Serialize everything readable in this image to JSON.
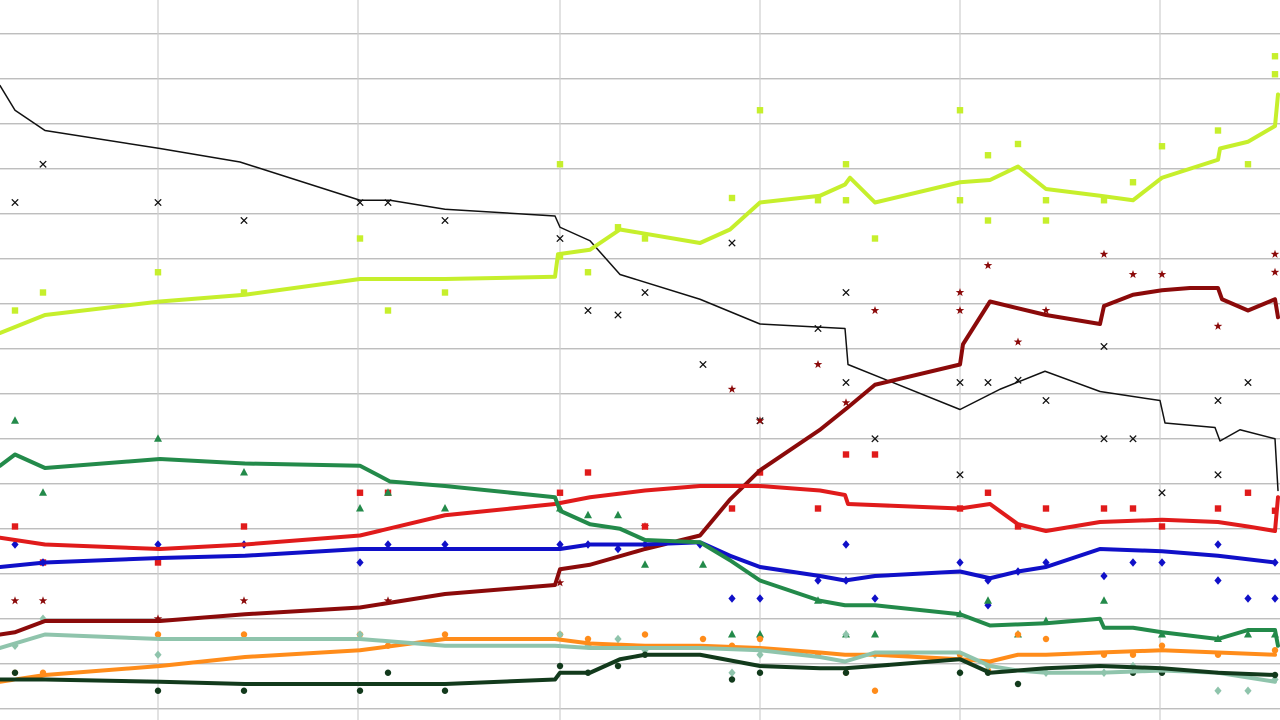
{
  "chart_data": {
    "type": "line",
    "xlim": [
      0,
      6.4
    ],
    "ylim": [
      -0.5,
      31.5
    ],
    "xticks": [
      0.79,
      1.79,
      2.8,
      3.8,
      4.8,
      5.8
    ],
    "yticks": [
      0,
      2,
      4,
      6,
      8,
      10,
      12,
      14,
      16,
      18,
      20,
      22,
      24,
      26,
      28,
      30
    ],
    "grid": true,
    "series": [
      {
        "color": "#111111",
        "width": 1.5,
        "marker": "cross",
        "x": [
          0,
          0.075,
          0.225,
          0.8,
          1.2,
          1.8,
          1.95,
          2.225,
          2.775,
          2.8,
          2.95,
          3.1,
          3.5,
          3.8,
          4.225,
          4.24,
          4.8,
          5,
          5.225,
          5.5,
          5.8,
          5.825,
          6.075,
          6.1,
          6.2,
          6.375,
          6.39
        ],
        "values": [
          27.7,
          26.6,
          25.7,
          24.9,
          24.3,
          22.6,
          22.6,
          22.2,
          21.9,
          21.4,
          20.8,
          19.3,
          18.2,
          17.1,
          16.9,
          15.3,
          13.3,
          14.2,
          15.0,
          14.1,
          13.7,
          12.7,
          12.5,
          11.9,
          12.4,
          12.0,
          9.7
        ],
        "points": {
          "x": [
            0.075,
            0.215,
            0.79,
            1.22,
            1.8,
            1.94,
            2.225,
            2.8,
            2.94,
            3.09,
            3.225,
            3.515,
            3.66,
            3.8,
            4.09,
            4.23,
            4.23,
            4.375,
            4.8,
            4.8,
            4.94,
            5.09,
            5.23,
            5.52,
            5.52,
            5.665,
            5.81,
            6.09,
            6.09,
            6.24
          ],
          "values": [
            22.5,
            24.2,
            22.5,
            21.7,
            22.5,
            22.5,
            21.7,
            20.9,
            17.7,
            17.5,
            18.5,
            15.3,
            20.7,
            12.8,
            16.9,
            18.5,
            14.5,
            12.0,
            14.5,
            10.4,
            14.5,
            14.6,
            13.7,
            16.1,
            12.0,
            12.0,
            9.6,
            13.7,
            10.4,
            14.5
          ]
        }
      },
      {
        "color": "#c6ef2c",
        "width": 4,
        "marker": "square",
        "x": [
          0,
          0.225,
          0.8,
          1.225,
          1.8,
          2.225,
          2.775,
          2.79,
          2.95,
          3.1,
          3.5,
          3.65,
          3.8,
          4.1,
          4.225,
          4.25,
          4.375,
          4.8,
          4.95,
          5.09,
          5.23,
          5.5,
          5.665,
          5.81,
          6.09,
          6.1,
          6.24,
          6.375,
          6.39
        ],
        "values": [
          16.7,
          17.5,
          18.1,
          18.4,
          19.1,
          19.1,
          19.2,
          20.2,
          20.4,
          21.3,
          20.7,
          21.3,
          22.5,
          22.8,
          23.3,
          23.6,
          22.5,
          23.4,
          23.5,
          24.1,
          23.1,
          22.8,
          22.6,
          23.6,
          24.4,
          24.9,
          25.2,
          25.9,
          27.3
        ],
        "points": {
          "x": [
            0.075,
            0.215,
            0.79,
            1.22,
            1.8,
            1.94,
            2.225,
            2.8,
            2.8,
            2.94,
            3.09,
            3.225,
            3.66,
            3.8,
            4.09,
            4.23,
            4.23,
            4.375,
            4.8,
            4.8,
            4.94,
            4.94,
            5.09,
            5.23,
            5.23,
            5.52,
            5.665,
            5.81,
            6.09,
            6.24,
            6.375,
            6.375
          ],
          "values": [
            17.7,
            18.5,
            19.4,
            18.5,
            20.9,
            17.7,
            18.5,
            24.2,
            20.1,
            19.4,
            21.4,
            20.9,
            22.7,
            26.6,
            22.6,
            24.2,
            22.6,
            20.9,
            26.6,
            22.6,
            24.6,
            21.7,
            25.1,
            22.6,
            21.7,
            22.6,
            23.4,
            25.0,
            25.7,
            24.2,
            29.0,
            28.2
          ]
        }
      },
      {
        "color": "#8b0a0a",
        "width": 4,
        "marker": "star",
        "x": [
          0,
          0.075,
          0.225,
          0.8,
          1.225,
          1.8,
          2.225,
          2.775,
          2.8,
          2.95,
          3.225,
          3.5,
          3.65,
          3.8,
          4.1,
          4.24,
          4.375,
          4.8,
          4.815,
          4.95,
          5.23,
          5.5,
          5.52,
          5.665,
          5.81,
          5.95,
          6.09,
          6.11,
          6.24,
          6.375,
          6.39
        ],
        "values": [
          3.3,
          3.4,
          3.9,
          3.9,
          4.2,
          4.5,
          5.1,
          5.5,
          6.2,
          6.4,
          7.1,
          7.7,
          9.3,
          10.6,
          12.4,
          13.4,
          14.4,
          15.3,
          16.2,
          18.1,
          17.5,
          17.1,
          17.9,
          18.4,
          18.6,
          18.7,
          18.7,
          18.2,
          17.7,
          18.2,
          17.4
        ],
        "points": {
          "x": [
            0.075,
            0.215,
            0.79,
            1.22,
            1.94,
            2.8,
            3.225,
            3.66,
            3.8,
            4.09,
            4.23,
            4.375,
            4.8,
            4.8,
            4.94,
            5.09,
            5.23,
            5.52,
            5.665,
            5.81,
            6.09,
            6.375,
            6.375
          ],
          "values": [
            4.8,
            4.8,
            4.0,
            4.8,
            4.8,
            5.6,
            8.1,
            14.2,
            12.8,
            15.3,
            13.6,
            17.7,
            18.5,
            17.7,
            19.7,
            16.3,
            17.7,
            20.2,
            19.3,
            19.3,
            17.0,
            20.2,
            19.4
          ]
        }
      },
      {
        "color": "#e01b1b",
        "width": 4,
        "marker": "square",
        "x": [
          0,
          0.225,
          0.8,
          1.225,
          1.8,
          2.225,
          2.775,
          2.95,
          3.225,
          3.5,
          3.8,
          4.1,
          4.225,
          4.24,
          4.8,
          4.95,
          5.09,
          5.23,
          5.5,
          5.81,
          6.09,
          6.24,
          6.375,
          6.39
        ],
        "values": [
          7.6,
          7.3,
          7.1,
          7.3,
          7.7,
          8.6,
          9.1,
          9.4,
          9.7,
          9.9,
          9.9,
          9.7,
          9.5,
          9.1,
          8.9,
          9.1,
          8.2,
          7.9,
          8.3,
          8.4,
          8.3,
          8.1,
          7.9,
          9.4
        ],
        "points": {
          "x": [
            0.075,
            0.215,
            0.79,
            1.22,
            1.8,
            1.94,
            2.8,
            2.94,
            3.225,
            3.66,
            3.8,
            4.09,
            4.23,
            4.375,
            4.8,
            4.94,
            5.09,
            5.23,
            5.52,
            5.665,
            5.81,
            6.09,
            6.24,
            6.375
          ],
          "values": [
            8.1,
            6.5,
            6.5,
            8.1,
            9.6,
            9.6,
            9.6,
            10.5,
            8.1,
            8.9,
            10.5,
            8.9,
            11.3,
            11.3,
            8.9,
            9.6,
            8.1,
            8.9,
            8.9,
            8.9,
            8.1,
            8.9,
            9.6,
            8.8
          ]
        }
      },
      {
        "color": "#1010c8",
        "width": 4,
        "marker": "diamond",
        "x": [
          0,
          0.225,
          0.8,
          1.225,
          1.8,
          2.225,
          2.8,
          2.95,
          3.225,
          3.5,
          3.65,
          3.8,
          4.1,
          4.225,
          4.375,
          4.8,
          4.95,
          5.09,
          5.23,
          5.5,
          5.81,
          6.09,
          6.375
        ],
        "values": [
          6.3,
          6.5,
          6.7,
          6.8,
          7.1,
          7.1,
          7.1,
          7.3,
          7.3,
          7.4,
          6.8,
          6.3,
          5.9,
          5.7,
          5.9,
          6.1,
          5.8,
          6.1,
          6.3,
          7.1,
          7.0,
          6.8,
          6.5
        ],
        "points": {
          "x": [
            0.075,
            0.215,
            0.79,
            1.22,
            1.8,
            1.94,
            2.225,
            2.8,
            2.94,
            3.09,
            3.225,
            3.5,
            3.66,
            3.8,
            4.09,
            4.23,
            4.23,
            4.375,
            4.8,
            4.94,
            4.94,
            5.09,
            5.23,
            5.52,
            5.665,
            5.81,
            6.09,
            6.09,
            6.24,
            6.375,
            6.375
          ],
          "values": [
            7.3,
            6.5,
            7.3,
            7.3,
            6.5,
            7.3,
            7.3,
            7.3,
            7.3,
            7.1,
            7.3,
            7.3,
            4.9,
            4.9,
            5.7,
            7.3,
            5.7,
            4.9,
            6.5,
            5.7,
            4.6,
            6.1,
            6.5,
            5.9,
            6.5,
            6.5,
            7.3,
            5.7,
            4.9,
            4.9,
            6.5
          ]
        }
      },
      {
        "color": "#238a4a",
        "width": 4,
        "marker": "triangle",
        "x": [
          0,
          0.075,
          0.225,
          0.8,
          1.225,
          1.8,
          1.95,
          2.225,
          2.775,
          2.8,
          2.95,
          3.1,
          3.225,
          3.5,
          3.65,
          3.8,
          4.1,
          4.225,
          4.375,
          4.8,
          4.95,
          5.23,
          5.5,
          5.52,
          5.665,
          5.81,
          6.09,
          6.24,
          6.375,
          6.39
        ],
        "values": [
          10.8,
          11.3,
          10.7,
          11.1,
          10.9,
          10.8,
          10.1,
          9.9,
          9.4,
          8.8,
          8.2,
          8.0,
          7.5,
          7.4,
          6.6,
          5.7,
          4.8,
          4.6,
          4.6,
          4.2,
          3.7,
          3.8,
          4.0,
          3.6,
          3.6,
          3.4,
          3.1,
          3.5,
          3.5,
          2.8
        ],
        "points": {
          "x": [
            0.075,
            0.215,
            0.79,
            1.22,
            1.8,
            1.94,
            2.225,
            2.8,
            2.94,
            3.09,
            3.225,
            3.515,
            3.66,
            3.8,
            4.09,
            4.23,
            4.375,
            4.8,
            4.94,
            5.09,
            5.23,
            5.52,
            5.81,
            6.09,
            6.24,
            6.375
          ],
          "values": [
            12.8,
            9.6,
            12.0,
            10.5,
            8.9,
            9.6,
            8.9,
            8.9,
            8.6,
            8.6,
            6.4,
            6.4,
            3.3,
            3.3,
            4.8,
            3.3,
            3.3,
            4.2,
            4.8,
            3.3,
            3.9,
            4.8,
            3.3,
            3.1,
            3.3,
            3.3
          ]
        }
      },
      {
        "color": "#ff8c1a",
        "width": 4,
        "marker": "circle",
        "x": [
          0,
          0.225,
          0.8,
          1.225,
          1.8,
          2.225,
          2.775,
          2.95,
          3.225,
          3.5,
          3.8,
          4.1,
          4.225,
          4.375,
          4.8,
          4.95,
          5.09,
          5.23,
          5.5,
          5.81,
          6.09,
          6.375
        ],
        "values": [
          1.2,
          1.5,
          1.9,
          2.3,
          2.6,
          3.1,
          3.1,
          2.9,
          2.8,
          2.8,
          2.7,
          2.5,
          2.4,
          2.4,
          2.2,
          2.1,
          2.4,
          2.4,
          2.5,
          2.6,
          2.5,
          2.4
        ],
        "points": {
          "x": [
            0.075,
            0.215,
            0.79,
            1.22,
            1.8,
            1.94,
            2.225,
            2.8,
            2.94,
            3.225,
            3.515,
            3.66,
            3.8,
            4.09,
            4.23,
            4.375,
            4.8,
            4.94,
            5.09,
            5.23,
            5.52,
            5.665,
            5.81,
            6.09,
            6.375
          ],
          "values": [
            1.6,
            1.6,
            3.3,
            3.3,
            3.3,
            2.8,
            3.3,
            3.3,
            3.1,
            3.3,
            3.1,
            2.8,
            3.1,
            2.4,
            1.6,
            0.8,
            2.4,
            1.7,
            3.3,
            3.1,
            2.4,
            2.4,
            2.8,
            2.4,
            2.6
          ]
        }
      },
      {
        "color": "#8fc4ac",
        "width": 4,
        "marker": "diamond",
        "x": [
          0,
          0.225,
          0.8,
          1.225,
          1.8,
          2.225,
          2.775,
          2.95,
          3.225,
          3.5,
          3.8,
          4.1,
          4.225,
          4.375,
          4.8,
          4.95,
          5.09,
          5.23,
          5.5,
          5.81,
          6.09,
          6.375
        ],
        "values": [
          2.7,
          3.3,
          3.1,
          3.1,
          3.1,
          2.8,
          2.8,
          2.7,
          2.7,
          2.7,
          2.6,
          2.3,
          2.1,
          2.5,
          2.5,
          1.9,
          1.7,
          1.6,
          1.6,
          1.7,
          1.6,
          1.2
        ],
        "points": {
          "x": [
            0.075,
            0.215,
            0.79,
            1.8,
            2.8,
            2.94,
            3.09,
            3.225,
            3.66,
            3.8,
            4.23,
            4.375,
            4.8,
            4.94,
            5.23,
            5.52,
            5.665,
            6.09,
            6.24,
            6.375
          ],
          "values": [
            2.8,
            4.0,
            2.4,
            3.3,
            3.3,
            2.8,
            3.1,
            2.6,
            1.6,
            2.4,
            3.3,
            2.4,
            1.6,
            1.9,
            1.6,
            1.6,
            1.9,
            0.8,
            0.8,
            1.3
          ]
        }
      },
      {
        "color": "#123a1c",
        "width": 4,
        "marker": "circle",
        "x": [
          0,
          0.225,
          0.8,
          1.225,
          1.8,
          2.225,
          2.775,
          2.8,
          2.95,
          3.1,
          3.225,
          3.5,
          3.8,
          4.1,
          4.225,
          4.375,
          4.8,
          4.95,
          5.23,
          5.5,
          5.81,
          6.09,
          6.375
        ],
        "values": [
          1.3,
          1.3,
          1.2,
          1.1,
          1.1,
          1.1,
          1.3,
          1.6,
          1.6,
          2.2,
          2.4,
          2.4,
          1.9,
          1.8,
          1.8,
          1.9,
          2.2,
          1.6,
          1.8,
          1.9,
          1.8,
          1.6,
          1.5
        ],
        "points": {
          "x": [
            0.075,
            0.79,
            1.22,
            1.8,
            1.94,
            2.225,
            2.8,
            2.94,
            3.09,
            3.225,
            3.66,
            3.8,
            4.23,
            4.8,
            4.94,
            5.09,
            5.665,
            5.81,
            6.375
          ],
          "values": [
            1.6,
            0.8,
            0.8,
            0.8,
            1.6,
            0.8,
            1.9,
            1.6,
            1.9,
            2.4,
            1.3,
            1.6,
            1.6,
            1.6,
            1.6,
            1.1,
            1.6,
            1.6,
            1.5
          ]
        }
      }
    ]
  }
}
